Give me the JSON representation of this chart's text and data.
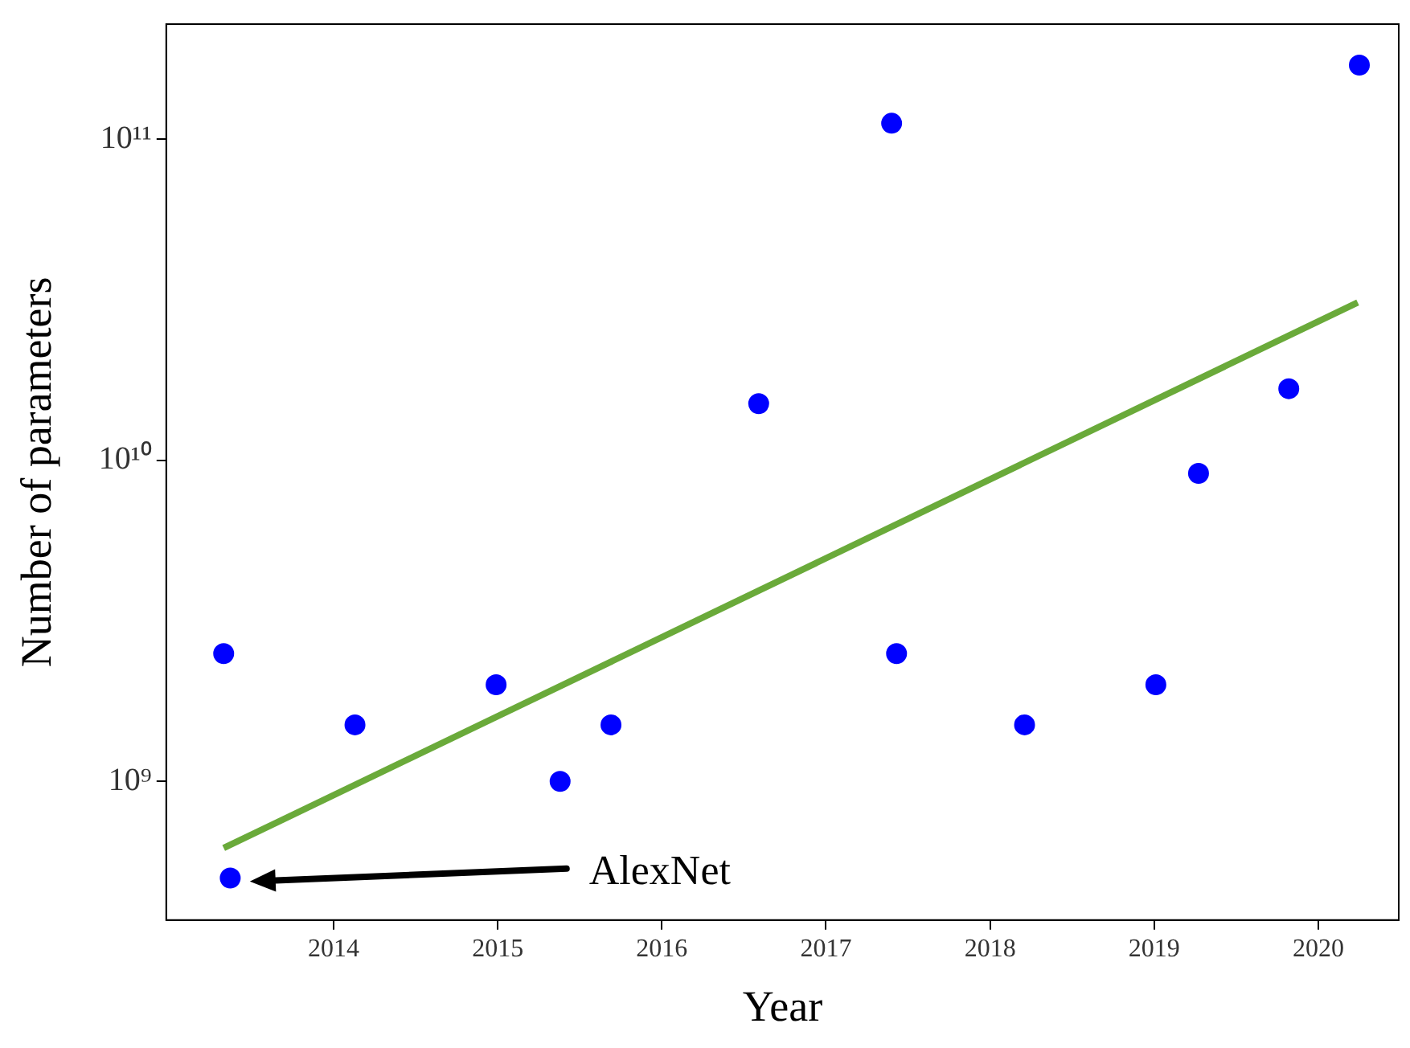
{
  "chart_data": {
    "type": "scatter",
    "xlabel": "Year",
    "ylabel": "Number of parameters",
    "log": "y",
    "grid": false,
    "legend": false,
    "marker": "circle",
    "xlim": [
      2012.98,
      2020.49
    ],
    "xticks": [
      2014,
      2015,
      2016,
      2017,
      2018,
      2019,
      2020
    ],
    "ylim": [
      370000000,
      228000000000
    ],
    "yticks": [
      {
        "value": 1000000000,
        "label": "10⁹"
      },
      {
        "value": 10000000000,
        "label": "10¹⁰"
      },
      {
        "value": 100000000000,
        "label": "10¹¹"
      }
    ],
    "series": [
      {
        "type": "scatter",
        "color": "#0000ff",
        "x": [
          2013.33,
          2013.37,
          2014.13,
          2014.99,
          2015.38,
          2015.69,
          2016.59,
          2017.4,
          2017.43,
          2018.21,
          2019.01,
          2019.27,
          2019.82,
          2020.25
        ],
        "values": [
          2500000000,
          500000000,
          1500000000,
          2000000000,
          1000000000,
          1500000000,
          15000000000,
          112000000000,
          2500000000,
          1500000000,
          2000000000,
          9100000000,
          16700000000,
          170000000000
        ]
      },
      {
        "type": "line",
        "color": "#6aaa3a",
        "x": [
          2013.33,
          2020.24
        ],
        "values": [
          620000000,
          31000000000
        ],
        "marker": "none",
        "line_style": "solid"
      }
    ],
    "annotations": [
      "AlexNet"
    ]
  }
}
